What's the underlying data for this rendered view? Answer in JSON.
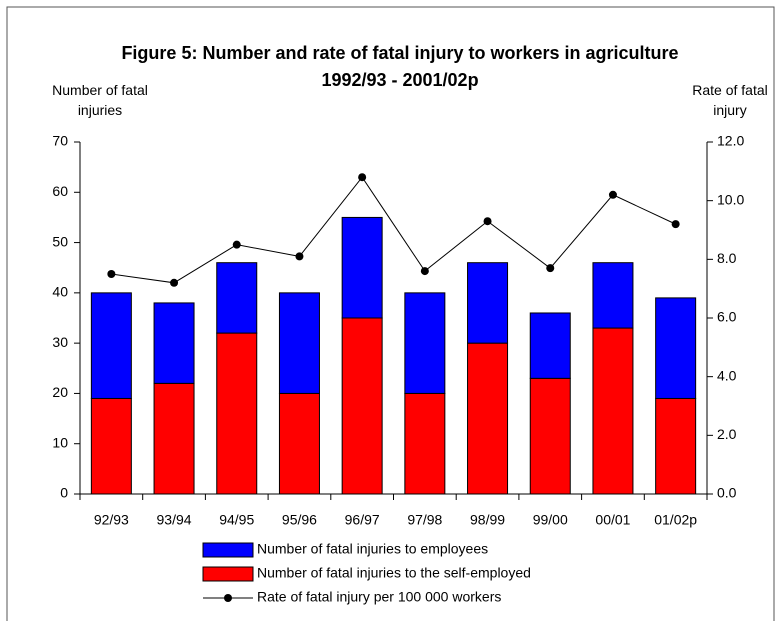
{
  "chart_data": {
    "type": "bar",
    "title": "Figure 5:  Number and rate of fatal injury to workers in agriculture 1992/93 - 2001/02p",
    "y_label": "Number of fatal injuries",
    "y2_label": "Rate of fatal injury",
    "categories": [
      "92/93",
      "93/94",
      "94/95",
      "95/96",
      "96/97",
      "97/98",
      "98/99",
      "99/00",
      "00/01",
      "01/02p"
    ],
    "series": [
      {
        "name": "Number of fatal injuries to the self-employed",
        "type": "bar",
        "color": "#ff0000",
        "values": [
          19,
          22,
          32,
          20,
          35,
          20,
          30,
          23,
          33,
          19
        ]
      },
      {
        "name": "Number of fatal injuries to employees",
        "type": "bar",
        "color": "#0000ff",
        "values": [
          21,
          16,
          14,
          20,
          20,
          20,
          16,
          13,
          13,
          20
        ]
      },
      {
        "name": "Rate of fatal injury per 100 000 workers",
        "type": "line",
        "axis": "y2",
        "color": "#000000",
        "values": [
          7.5,
          7.2,
          8.5,
          8.1,
          10.8,
          7.6,
          9.3,
          7.7,
          10.2,
          9.2
        ]
      }
    ],
    "stacked": true,
    "ylim": [
      0,
      70
    ],
    "yticks": [
      0,
      10,
      20,
      30,
      40,
      50,
      60,
      70
    ],
    "y2lim": [
      0,
      12
    ],
    "y2ticks": [
      {
        "value": 0,
        "label": "0.0"
      },
      {
        "value": 2,
        "label": "2.0"
      },
      {
        "value": 4,
        "label": "4.0"
      },
      {
        "value": 6,
        "label": "6.0"
      },
      {
        "value": 8,
        "label": "8.0"
      },
      {
        "value": 10,
        "label": "10.0"
      },
      {
        "value": 12,
        "label": "12.0"
      }
    ],
    "grid": false,
    "legend": "bottom"
  }
}
